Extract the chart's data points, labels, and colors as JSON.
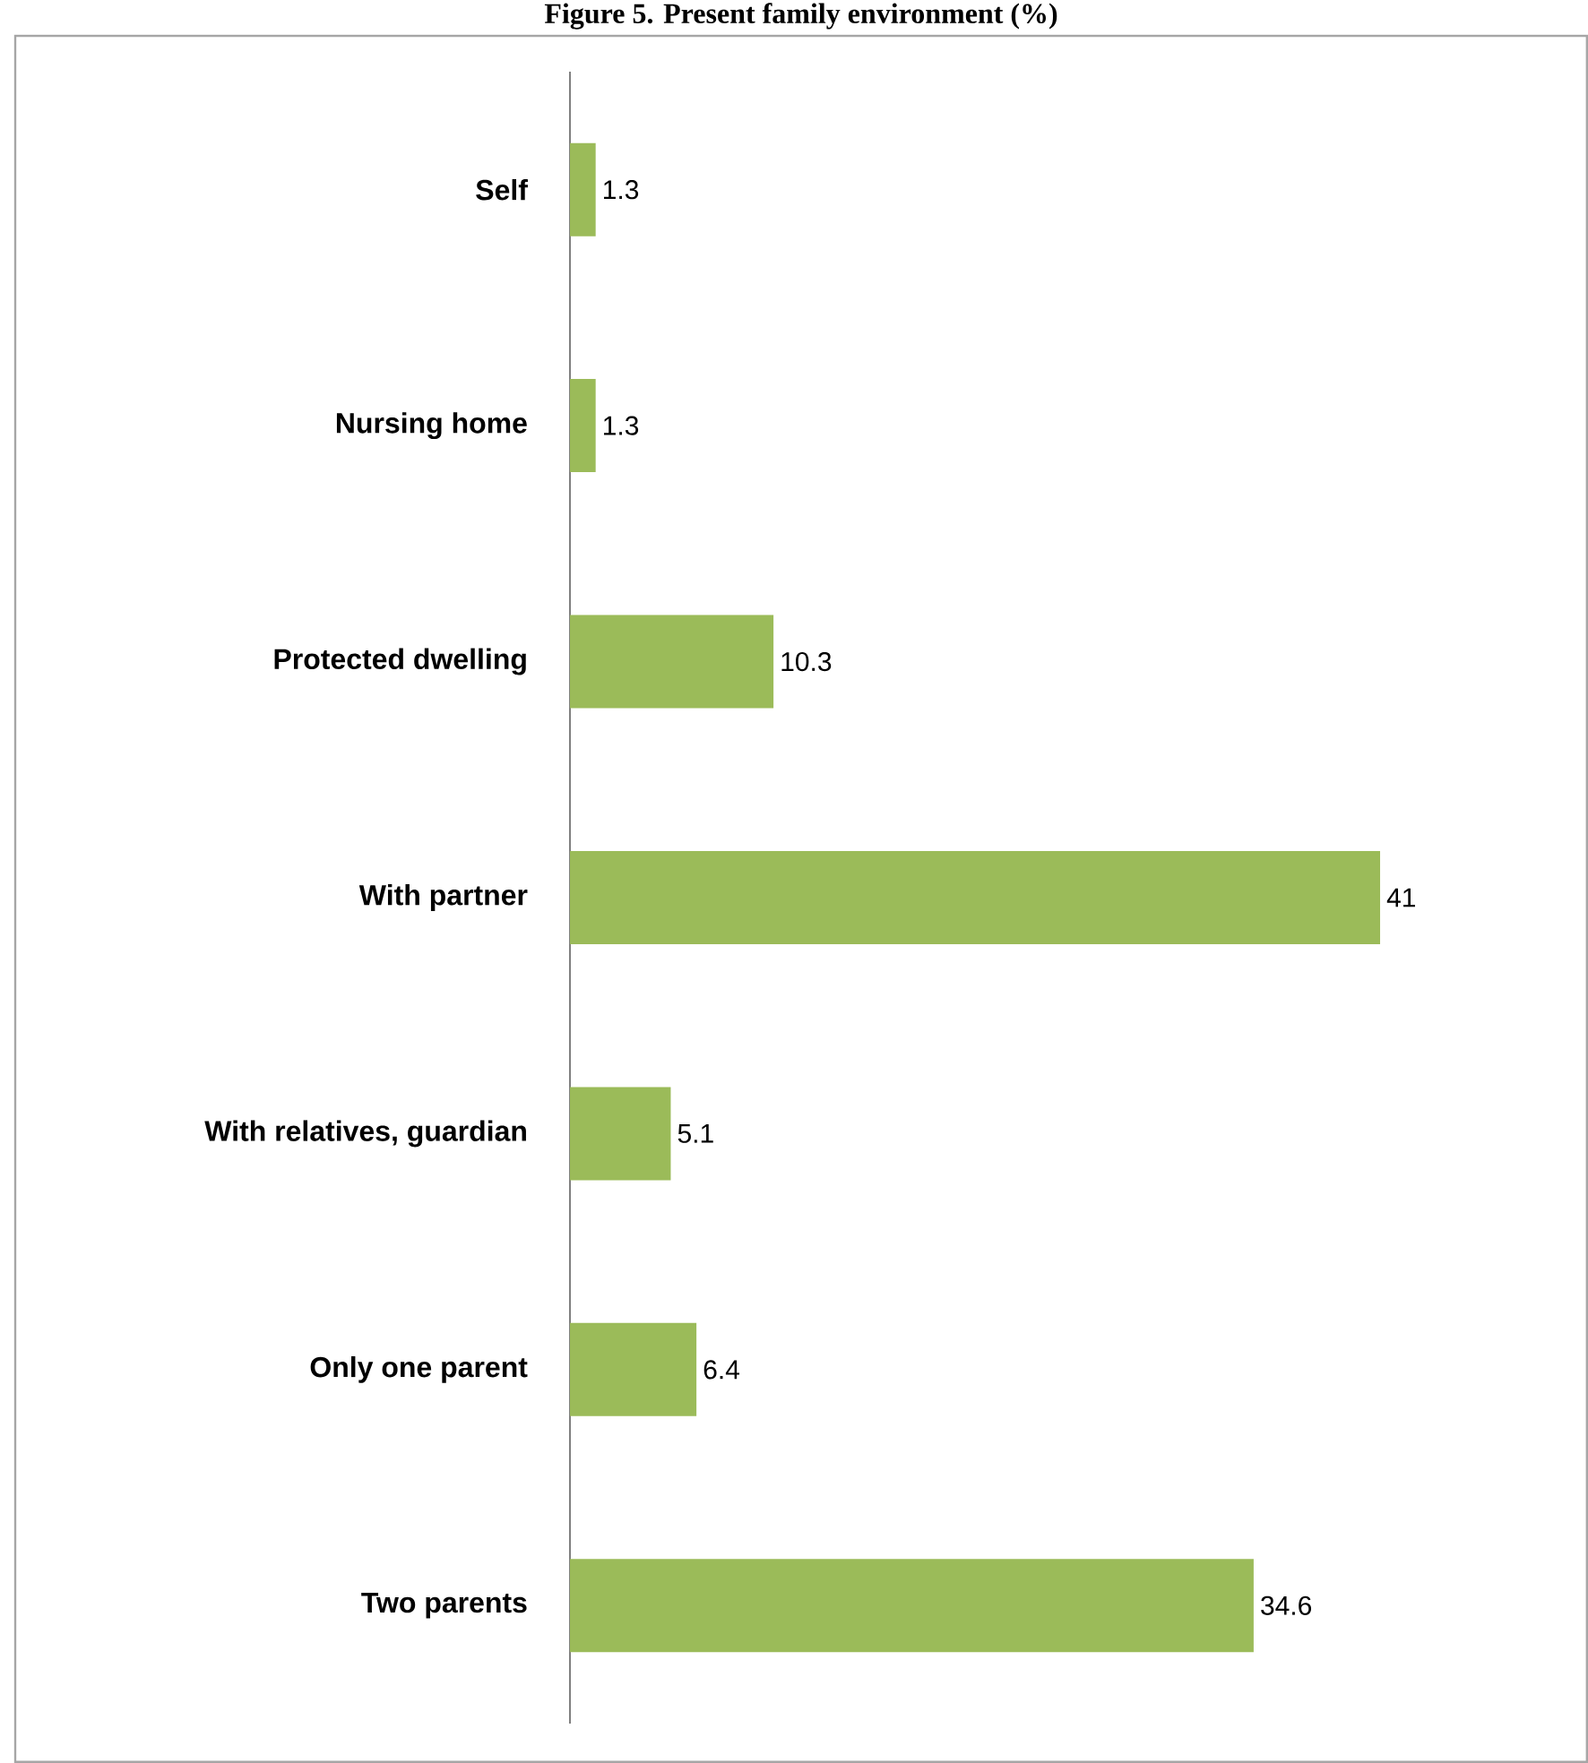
{
  "chart_data": {
    "type": "bar",
    "orientation": "horizontal",
    "title": "Figure 5. Present family environment (%)",
    "categories": [
      "Self",
      "Nursing home",
      "Protected dwelling",
      "With partner",
      "With relatives, guardian",
      "Only one parent",
      "Two parents"
    ],
    "values": [
      1.3,
      1.3,
      10.3,
      41,
      5.1,
      6.4,
      34.6
    ],
    "color": "#9bbb59",
    "data_labels": true
  }
}
